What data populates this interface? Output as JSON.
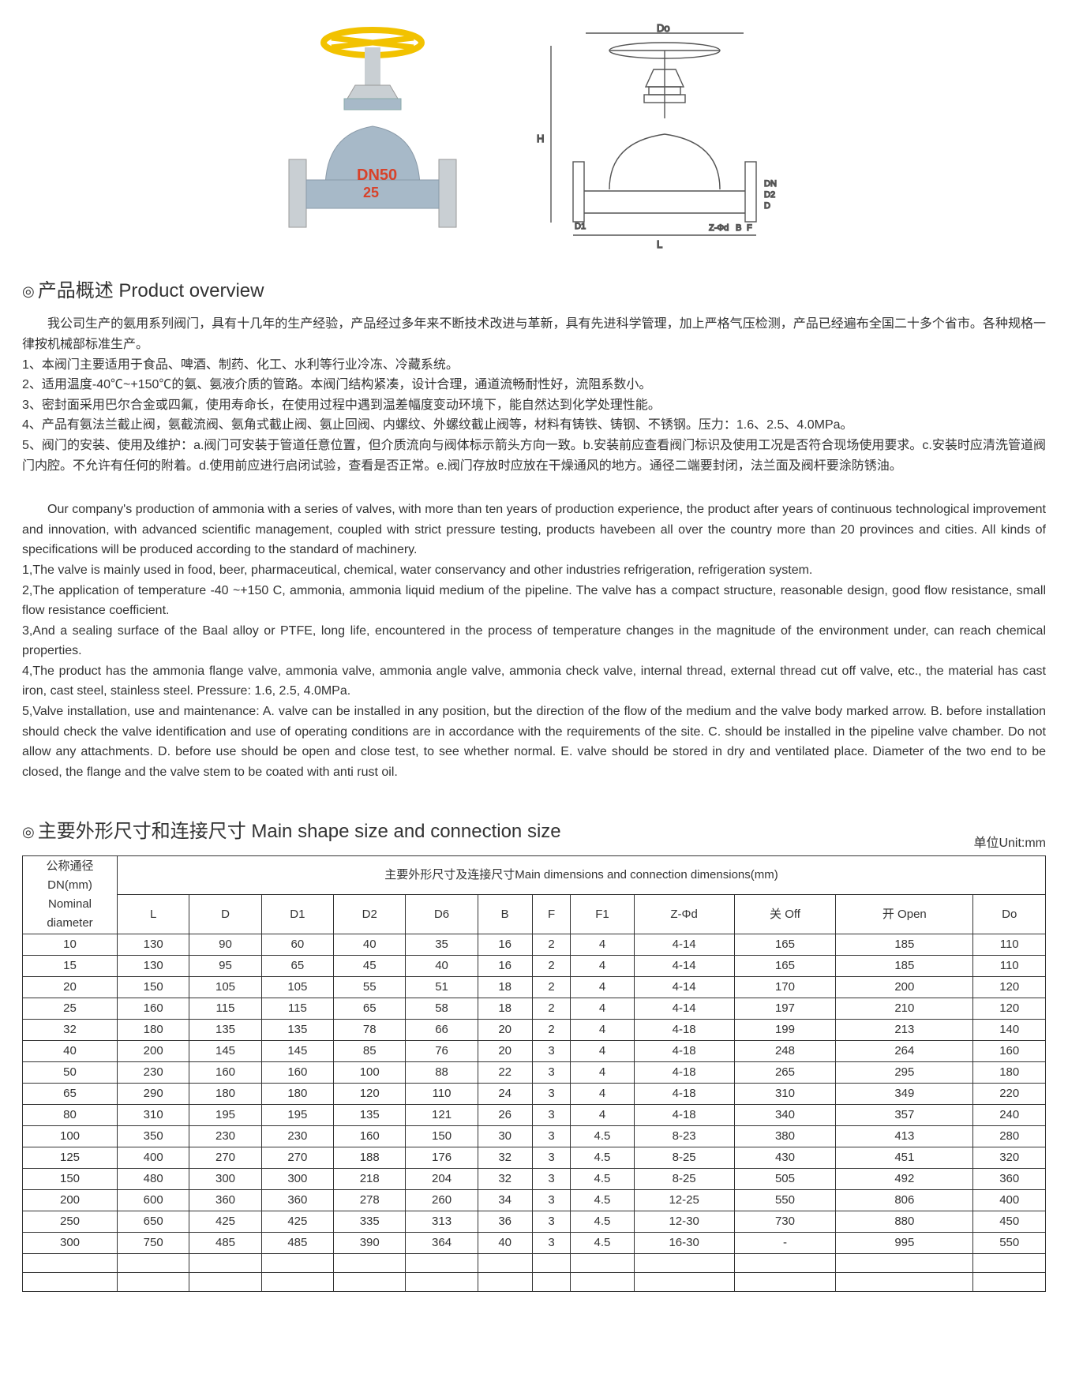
{
  "figure": {
    "photo": {
      "handwheel_color": "#f2c200",
      "body_color": "#a7b9c8",
      "flange_color": "#c9cfd3",
      "label_text": "DN50",
      "label_sub": "25",
      "label_color": "#d8422a"
    },
    "diagram": {
      "labels": {
        "Do": "Do",
        "H": "H",
        "D1": "D1",
        "D2": "D2",
        "D": "D",
        "L": "L",
        "F": "F",
        "B": "B",
        "Z": "Z-Φd",
        "DN": "DN"
      }
    }
  },
  "sections": {
    "overview_title": "产品概述 Product overview",
    "dimensions_title": "主要外形尺寸和连接尺寸 Main shape size and connection size",
    "unit": "单位Unit:mm"
  },
  "cn_text": {
    "intro": "我公司生产的氨用系列阀门，具有十几年的生产经验，产品经过多年来不断技术改进与革新，具有先进科学管理，加上严格气压检测，产品已经遍布全国二十多个省市。各种规格一律按机械部标准生产。",
    "l1": "1、本阀门主要适用于食品、啤酒、制药、化工、水利等行业冷冻、冷藏系统。",
    "l2": "2、适用温度-40℃~+150℃的氨、氨液介质的管路。本阀门结构紧凑，设计合理，通道流畅耐性好，流阻系数小。",
    "l3": "3、密封面采用巴尔合金或四氟，使用寿命长，在使用过程中遇到温差幅度变动环境下，能自然达到化学处理性能。",
    "l4": "4、产品有氨法兰截止阀，氨截流阀、氨角式截止阀、氨止回阀、内螺纹、外螺纹截止阀等，材料有铸铁、铸钢、不锈钢。压力：1.6、2.5、4.0MPa。",
    "l5": "5、阀门的安装、使用及维护：a.阀门可安装于管道任意位置，但介质流向与阀体标示箭头方向一致。b.安装前应查看阀门标识及使用工况是否符合现场使用要求。c.安装时应清洗管道阀门内腔。不允许有任何的附着。d.使用前应进行启闭试验，查看是否正常。e.阀门存放时应放在干燥通风的地方。通径二端要封闭，法兰面及阀杆要涂防锈油。"
  },
  "en_text": {
    "intro": "Our company's production of ammonia with a series of valves, with more than ten years of production experience, the product after years of continuous technological improvement and innovation, with advanced scientific management, coupled with strict pressure testing, products havebeen all over the country more than 20 provinces and cities. All kinds of specifications will be produced according to the standard of machinery.",
    "l1": "1,The valve is mainly used in food, beer, pharmaceutical, chemical, water conservancy and other industries refrigeration, refrigeration system.",
    "l2": "2,The application of temperature -40 ~+150 C, ammonia, ammonia liquid medium of the pipeline. The valve has a compact structure, reasonable design, good flow  resistance, small flow resistance coefficient.",
    "l3": "3,And a sealing surface of the Baal alloy or PTFE, long life, encountered in the process of temperature changes in the magnitude of the environment under, can reach  chemical properties.",
    "l4": "4,The product has the ammonia flange valve, ammonia valve, ammonia angle valve, ammonia check valve, internal thread, external thread cut off valve, etc., the material has cast iron, cast steel, stainless steel. Pressure: 1.6, 2.5, 4.0MPa.",
    "l5": "5,Valve installation, use and maintenance: A. valve can be installed in any position, but the direction of the flow of the medium and the valve body marked arrow. B. before installation should check the valve identification and use of operating conditions are in accordance with the requirements of the site. C. should be installed in the pipeline valve chamber. Do not allow any attachments. D. before use should be open and close test, to see whether normal. E. valve should be stored in dry and ventilated place. Diameter of the two end to be closed, the flange and the valve stem to be coated with anti rust oil."
  },
  "table": {
    "head_group": "主要外形尺寸及连接尺寸Main dimensions and connection dimensions(mm)",
    "dn_head_cn": "公称通径",
    "dn_head_unit": "DN(mm)",
    "dn_head_en": "Nominal diameter",
    "columns": [
      "L",
      "D",
      "D1",
      "D2",
      "D6",
      "B",
      "F",
      "F1",
      "Z-Φd",
      "关 Off",
      "开 Open",
      "Do"
    ],
    "rows": [
      [
        "10",
        "130",
        "90",
        "60",
        "40",
        "35",
        "16",
        "2",
        "4",
        "4-14",
        "165",
        "185",
        "110"
      ],
      [
        "15",
        "130",
        "95",
        "65",
        "45",
        "40",
        "16",
        "2",
        "4",
        "4-14",
        "165",
        "185",
        "110"
      ],
      [
        "20",
        "150",
        "105",
        "105",
        "55",
        "51",
        "18",
        "2",
        "4",
        "4-14",
        "170",
        "200",
        "120"
      ],
      [
        "25",
        "160",
        "115",
        "115",
        "65",
        "58",
        "18",
        "2",
        "4",
        "4-14",
        "197",
        "210",
        "120"
      ],
      [
        "32",
        "180",
        "135",
        "135",
        "78",
        "66",
        "20",
        "2",
        "4",
        "4-18",
        "199",
        "213",
        "140"
      ],
      [
        "40",
        "200",
        "145",
        "145",
        "85",
        "76",
        "20",
        "3",
        "4",
        "4-18",
        "248",
        "264",
        "160"
      ],
      [
        "50",
        "230",
        "160",
        "160",
        "100",
        "88",
        "22",
        "3",
        "4",
        "4-18",
        "265",
        "295",
        "180"
      ],
      [
        "65",
        "290",
        "180",
        "180",
        "120",
        "110",
        "24",
        "3",
        "4",
        "4-18",
        "310",
        "349",
        "220"
      ],
      [
        "80",
        "310",
        "195",
        "195",
        "135",
        "121",
        "26",
        "3",
        "4",
        "4-18",
        "340",
        "357",
        "240"
      ],
      [
        "100",
        "350",
        "230",
        "230",
        "160",
        "150",
        "30",
        "3",
        "4.5",
        "8-23",
        "380",
        "413",
        "280"
      ],
      [
        "125",
        "400",
        "270",
        "270",
        "188",
        "176",
        "32",
        "3",
        "4.5",
        "8-25",
        "430",
        "451",
        "320"
      ],
      [
        "150",
        "480",
        "300",
        "300",
        "218",
        "204",
        "32",
        "3",
        "4.5",
        "8-25",
        "505",
        "492",
        "360"
      ],
      [
        "200",
        "600",
        "360",
        "360",
        "278",
        "260",
        "34",
        "3",
        "4.5",
        "12-25",
        "550",
        "806",
        "400"
      ],
      [
        "250",
        "650",
        "425",
        "425",
        "335",
        "313",
        "36",
        "3",
        "4.5",
        "12-30",
        "730",
        "880",
        "450"
      ],
      [
        "300",
        "750",
        "485",
        "485",
        "390",
        "364",
        "40",
        "3",
        "4.5",
        "16-30",
        "-",
        "995",
        "550"
      ],
      [
        "",
        "",
        "",
        "",
        "",
        "",
        "",
        "",
        "",
        "",
        "",
        "",
        ""
      ],
      [
        "",
        "",
        "",
        "",
        "",
        "",
        "",
        "",
        "",
        "",
        "",
        "",
        ""
      ]
    ]
  }
}
